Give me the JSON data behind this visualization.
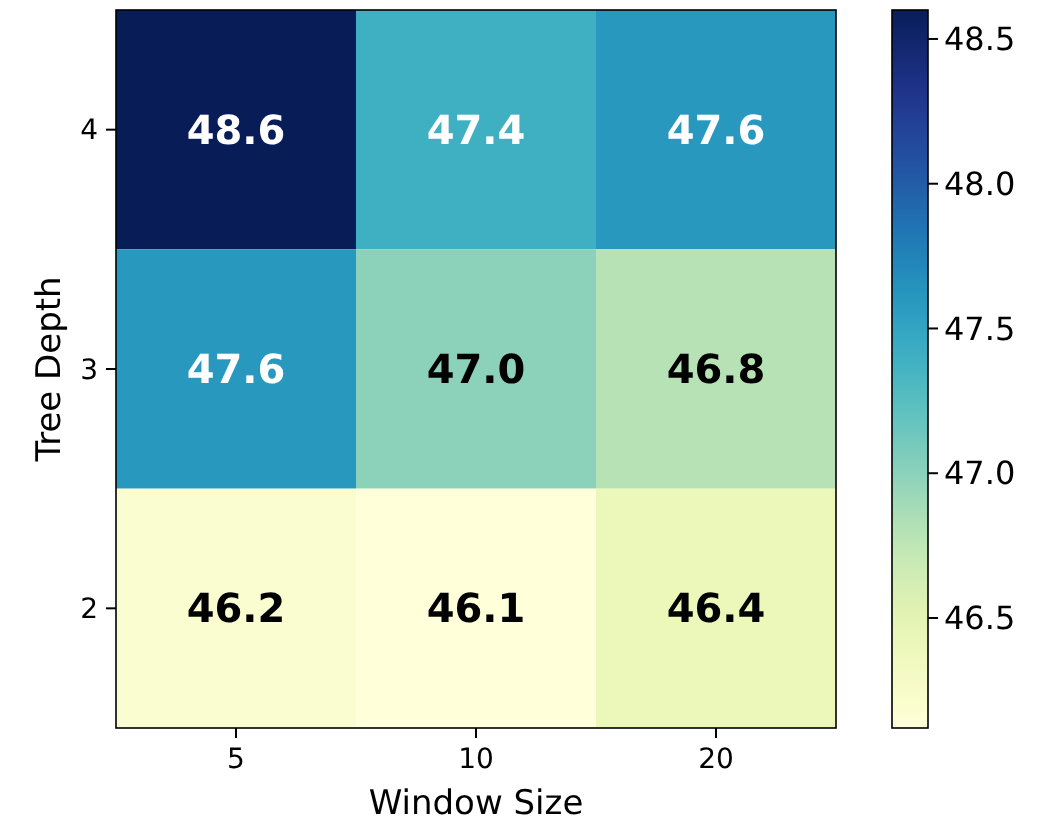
{
  "chart_data": {
    "type": "heatmap",
    "xlabel": "Window Size",
    "ylabel": "Tree Depth",
    "categories": [
      "5",
      "10",
      "20"
    ],
    "y_categories": [
      "4",
      "3",
      "2"
    ],
    "cells": [
      [
        48.6,
        47.4,
        47.6
      ],
      [
        47.6,
        47.0,
        46.8
      ],
      [
        46.2,
        46.1,
        46.4
      ]
    ],
    "cell_labels": [
      [
        "48.6",
        "47.4",
        "47.6"
      ],
      [
        "47.6",
        "47.0",
        "46.8"
      ],
      [
        "46.2",
        "46.1",
        "46.4"
      ]
    ],
    "clim": [
      46.12,
      48.6
    ],
    "cticks": [
      {
        "value": 46.5,
        "label": "46.5"
      },
      {
        "value": 47.0,
        "label": "47.0"
      },
      {
        "value": 47.5,
        "label": "47.5"
      },
      {
        "value": 48.0,
        "label": "48.0"
      },
      {
        "value": 48.5,
        "label": "48.5"
      }
    ]
  }
}
